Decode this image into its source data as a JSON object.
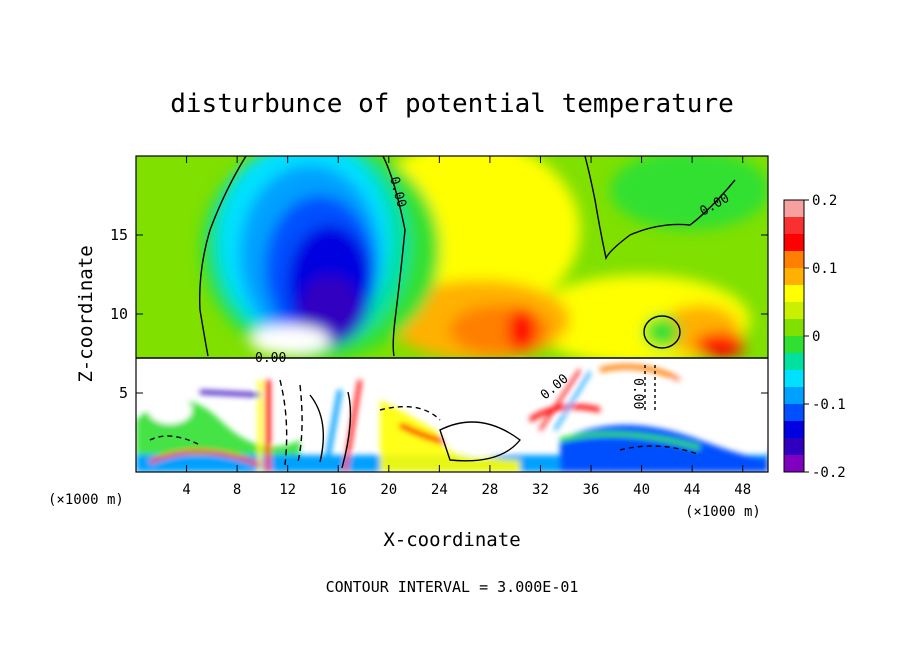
{
  "chart_data": {
    "type": "heatmap",
    "title": "disturbunce of potential temperature",
    "xlabel": "X-coordinate",
    "ylabel": "Z-coordinate",
    "x_unit": "(×1000 m)",
    "x_ticks": [
      4,
      8,
      12,
      16,
      20,
      24,
      28,
      32,
      36,
      40,
      44,
      48
    ],
    "y_ticks": [
      5,
      10,
      15
    ],
    "xlim": [
      0,
      50
    ],
    "ylim": [
      0,
      20
    ],
    "colorbar": {
      "ticks": [
        "0.2",
        "0.1",
        "0",
        "-0.1",
        "-0.2"
      ],
      "range": [
        -0.2,
        0.2
      ],
      "colors": [
        "#f7a0a0",
        "#f83030",
        "#ff0000",
        "#ff7f00",
        "#ffb000",
        "#ffff00",
        "#c8f000",
        "#80e000",
        "#30e030",
        "#00e0a0",
        "#00e0ff",
        "#00a0ff",
        "#0050ff",
        "#0000e0",
        "#3000c0",
        "#8000c0"
      ]
    },
    "contour_labels": [
      "0.00",
      "0.00",
      "0.00",
      "0.00",
      "0.00"
    ],
    "annotation": "CONTOUR INTERVAL = 3.000E-01",
    "colors": {
      "warm": "#ff7f00",
      "neutral": "#30e030",
      "cold": "#0000e0",
      "outside_range": "#ffffff"
    }
  }
}
